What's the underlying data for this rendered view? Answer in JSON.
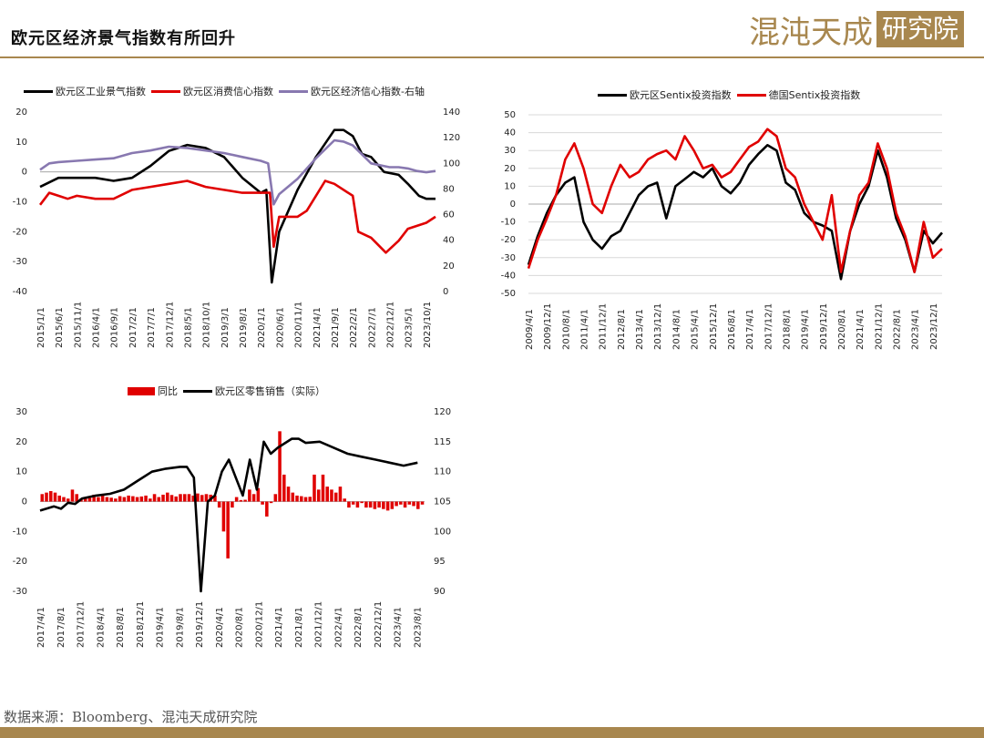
{
  "header": {
    "title": "欧元区经济景气指数有所回升",
    "brand_main": "混沌天成",
    "brand_box": "研究院"
  },
  "colors": {
    "black": "#000000",
    "red": "#e00000",
    "purple": "#8878b0",
    "gold": "#a8874e"
  },
  "source": "数据来源：Bloomberg、混沌天成研究院",
  "chart_data": [
    {
      "type": "line",
      "x_ticks": [
        "2015/1/1",
        "2015/6/1",
        "2015/11/1",
        "2016/4/1",
        "2016/9/1",
        "2017/2/1",
        "2017/7/1",
        "2017/12/1",
        "2018/5/1",
        "2018/10/1",
        "2019/3/1",
        "2019/8/1",
        "2020/1/1",
        "2020/6/1",
        "2020/11/1",
        "2021/4/1",
        "2021/9/1",
        "2022/2/1",
        "2022/7/1",
        "2022/12/1",
        "2023/5/1",
        "2023/10/1"
      ],
      "ylim": [
        -40,
        20
      ],
      "y_ticks": [
        20,
        10,
        0,
        -10,
        -20,
        -30,
        -40
      ],
      "y2lim": [
        0,
        140
      ],
      "y2_ticks": [
        140,
        120,
        100,
        80,
        60,
        40,
        20,
        0
      ],
      "series": [
        {
          "name": "欧元区工业景气指数",
          "axis": "left",
          "color": "#000000",
          "points": [
            [
              0,
              -5
            ],
            [
              1,
              -2
            ],
            [
              2,
              -2
            ],
            [
              3,
              -2
            ],
            [
              4,
              -3
            ],
            [
              5,
              -2
            ],
            [
              6,
              2
            ],
            [
              7,
              7
            ],
            [
              8,
              9
            ],
            [
              9,
              8
            ],
            [
              10,
              5
            ],
            [
              11,
              -2
            ],
            [
              12,
              -7
            ],
            [
              12.3,
              -6
            ],
            [
              12.6,
              -37
            ],
            [
              13,
              -20
            ],
            [
              14,
              -6
            ],
            [
              15,
              5
            ],
            [
              16,
              14
            ],
            [
              16.5,
              14
            ],
            [
              17,
              12
            ],
            [
              17.5,
              6
            ],
            [
              18,
              5
            ],
            [
              18.7,
              0
            ],
            [
              19.5,
              -1
            ],
            [
              20,
              -4
            ],
            [
              20.6,
              -8
            ],
            [
              21,
              -9
            ],
            [
              21.5,
              -9
            ]
          ]
        },
        {
          "name": "欧元区消费信心指数",
          "axis": "left",
          "color": "#e00000",
          "points": [
            [
              0,
              -11
            ],
            [
              0.5,
              -7
            ],
            [
              1,
              -8
            ],
            [
              1.5,
              -9
            ],
            [
              2,
              -8
            ],
            [
              3,
              -9
            ],
            [
              4,
              -9
            ],
            [
              5,
              -6
            ],
            [
              6,
              -5
            ],
            [
              7,
              -4
            ],
            [
              8,
              -3
            ],
            [
              9,
              -5
            ],
            [
              10,
              -6
            ],
            [
              11,
              -7
            ],
            [
              12,
              -7
            ],
            [
              12.5,
              -7
            ],
            [
              12.7,
              -25
            ],
            [
              13,
              -15
            ],
            [
              14,
              -15
            ],
            [
              14.5,
              -13
            ],
            [
              15,
              -8
            ],
            [
              15.5,
              -3
            ],
            [
              16,
              -4
            ],
            [
              17,
              -8
            ],
            [
              17.3,
              -20
            ],
            [
              18,
              -22
            ],
            [
              18.8,
              -27
            ],
            [
              19.5,
              -23
            ],
            [
              20,
              -19
            ],
            [
              21,
              -17
            ],
            [
              21.5,
              -15
            ]
          ]
        },
        {
          "name": "欧元区经济信心指数-右轴",
          "axis": "right",
          "color": "#8878b0",
          "points": [
            [
              0,
              95
            ],
            [
              0.5,
              100
            ],
            [
              1,
              101
            ],
            [
              2,
              102
            ],
            [
              3,
              103
            ],
            [
              4,
              104
            ],
            [
              5,
              108
            ],
            [
              6,
              110
            ],
            [
              7,
              113
            ],
            [
              8,
              112
            ],
            [
              9,
              110
            ],
            [
              10,
              108
            ],
            [
              11,
              105
            ],
            [
              12,
              102
            ],
            [
              12.4,
              100
            ],
            [
              12.7,
              68
            ],
            [
              13,
              76
            ],
            [
              14,
              88
            ],
            [
              15,
              104
            ],
            [
              16,
              118
            ],
            [
              16.5,
              117
            ],
            [
              17,
              114
            ],
            [
              18,
              100
            ],
            [
              19,
              97
            ],
            [
              19.5,
              97
            ],
            [
              20,
              96
            ],
            [
              20.5,
              94
            ],
            [
              21,
              93
            ],
            [
              21.5,
              94
            ]
          ]
        }
      ]
    },
    {
      "type": "line",
      "x_ticks": [
        "2009/4/1",
        "2009/12/1",
        "2010/8/1",
        "2011/4/1",
        "2011/12/1",
        "2012/8/1",
        "2013/4/1",
        "2013/12/1",
        "2014/8/1",
        "2015/4/1",
        "2015/12/1",
        "2016/8/1",
        "2017/4/1",
        "2017/12/1",
        "2018/8/1",
        "2019/4/1",
        "2019/12/1",
        "2020/8/1",
        "2021/4/1",
        "2021/12/1",
        "2022/8/1",
        "2023/4/1",
        "2023/12/1"
      ],
      "ylim": [
        -50,
        50
      ],
      "y_ticks": [
        50,
        40,
        30,
        20,
        10,
        0,
        -10,
        -20,
        -30,
        -40,
        -50
      ],
      "series": [
        {
          "name": "欧元区Sentix投资指数",
          "color": "#000000",
          "points": [
            [
              0,
              -34
            ],
            [
              0.5,
              -18
            ],
            [
              1,
              -5
            ],
            [
              1.5,
              5
            ],
            [
              2,
              12
            ],
            [
              2.5,
              15
            ],
            [
              3,
              -10
            ],
            [
              3.5,
              -20
            ],
            [
              4,
              -25
            ],
            [
              4.5,
              -18
            ],
            [
              5,
              -15
            ],
            [
              5.5,
              -5
            ],
            [
              6,
              5
            ],
            [
              6.5,
              10
            ],
            [
              7,
              12
            ],
            [
              7.5,
              -8
            ],
            [
              8,
              10
            ],
            [
              8.5,
              14
            ],
            [
              9,
              18
            ],
            [
              9.5,
              15
            ],
            [
              10,
              20
            ],
            [
              10.5,
              10
            ],
            [
              11,
              6
            ],
            [
              11.5,
              12
            ],
            [
              12,
              22
            ],
            [
              12.5,
              28
            ],
            [
              13,
              33
            ],
            [
              13.5,
              30
            ],
            [
              14,
              12
            ],
            [
              14.5,
              8
            ],
            [
              15,
              -5
            ],
            [
              15.5,
              -10
            ],
            [
              16,
              -12
            ],
            [
              16.5,
              -15
            ],
            [
              17,
              -42
            ],
            [
              17.5,
              -15
            ],
            [
              18,
              0
            ],
            [
              18.5,
              10
            ],
            [
              19,
              30
            ],
            [
              19.5,
              15
            ],
            [
              20,
              -8
            ],
            [
              20.5,
              -20
            ],
            [
              21,
              -38
            ],
            [
              21.5,
              -15
            ],
            [
              22,
              -22
            ],
            [
              22.5,
              -16
            ]
          ]
        },
        {
          "name": "德国Sentix投资指数",
          "color": "#e00000",
          "points": [
            [
              0,
              -36
            ],
            [
              0.5,
              -20
            ],
            [
              1,
              -8
            ],
            [
              1.5,
              5
            ],
            [
              2,
              25
            ],
            [
              2.5,
              34
            ],
            [
              3,
              20
            ],
            [
              3.5,
              0
            ],
            [
              4,
              -5
            ],
            [
              4.5,
              10
            ],
            [
              5,
              22
            ],
            [
              5.5,
              15
            ],
            [
              6,
              18
            ],
            [
              6.5,
              25
            ],
            [
              7,
              28
            ],
            [
              7.5,
              30
            ],
            [
              8,
              25
            ],
            [
              8.5,
              38
            ],
            [
              9,
              30
            ],
            [
              9.5,
              20
            ],
            [
              10,
              22
            ],
            [
              10.5,
              15
            ],
            [
              11,
              18
            ],
            [
              11.5,
              25
            ],
            [
              12,
              32
            ],
            [
              12.5,
              35
            ],
            [
              13,
              42
            ],
            [
              13.5,
              38
            ],
            [
              14,
              20
            ],
            [
              14.5,
              15
            ],
            [
              15,
              0
            ],
            [
              15.5,
              -10
            ],
            [
              16,
              -20
            ],
            [
              16.5,
              5
            ],
            [
              17,
              -38
            ],
            [
              17.5,
              -15
            ],
            [
              18,
              5
            ],
            [
              18.5,
              12
            ],
            [
              19,
              34
            ],
            [
              19.5,
              20
            ],
            [
              20,
              -5
            ],
            [
              20.5,
              -18
            ],
            [
              21,
              -38
            ],
            [
              21.5,
              -10
            ],
            [
              22,
              -30
            ],
            [
              22.5,
              -25
            ]
          ]
        }
      ]
    },
    {
      "type": "bar+line",
      "x_ticks": [
        "2017/4/1",
        "2017/8/1",
        "2017/12/1",
        "2018/4/1",
        "2018/8/1",
        "2018/12/1",
        "2019/4/1",
        "2019/8/1",
        "2019/12/1",
        "2020/4/1",
        "2020/8/1",
        "2020/12/1",
        "2021/4/1",
        "2021/8/1",
        "2021/12/1",
        "2022/4/1",
        "2022/8/1",
        "2022/12/1",
        "2023/4/1",
        "2023/8/1"
      ],
      "ylim": [
        -30,
        30
      ],
      "y_ticks": [
        30,
        20,
        10,
        0,
        -10,
        -20,
        -30
      ],
      "y2lim": [
        90,
        120
      ],
      "y2_ticks": [
        120,
        115,
        110,
        105,
        100,
        95,
        90
      ],
      "series": [
        {
          "name": "同比",
          "type": "bar",
          "axis": "left",
          "color": "#e00000",
          "values": [
            2.5,
            3,
            3.5,
            3,
            2,
            1.5,
            1,
            4,
            2.5,
            1,
            1.5,
            1.2,
            2.3,
            1.5,
            2,
            1.5,
            1.3,
            1,
            1.8,
            1.5,
            2,
            1.8,
            1.5,
            1.7,
            2,
            1,
            2.5,
            1.5,
            2.3,
            3,
            2.2,
            1.7,
            2.5,
            2.5,
            2.5,
            2,
            2.7,
            2.2,
            2.5,
            2.3,
            2,
            -2,
            -10,
            -19,
            -2,
            1.5,
            0.5,
            0.6,
            4,
            2.5,
            4.5,
            -1,
            -5,
            -0.5,
            2.5,
            23.5,
            9,
            5,
            3,
            2,
            1.8,
            1.5,
            1.6,
            9,
            4,
            9,
            5,
            4,
            3,
            5,
            1,
            -2,
            -1,
            -2,
            -0.5,
            -2,
            -2,
            -2.5,
            -2,
            -2.5,
            -3,
            -2.5,
            -1.5,
            -1,
            -2,
            -1,
            -1.5,
            -2.5,
            -1
          ]
        },
        {
          "name": "欧元区零售销售（实际）",
          "type": "line",
          "axis": "right",
          "color": "#000000",
          "points": [
            [
              0,
              103.5
            ],
            [
              1,
              104.2
            ],
            [
              1.5,
              103.8
            ],
            [
              2,
              104.8
            ],
            [
              2.5,
              104.6
            ],
            [
              3,
              105.5
            ],
            [
              4,
              106
            ],
            [
              5,
              106.3
            ],
            [
              6,
              107
            ],
            [
              7,
              108.5
            ],
            [
              8,
              110
            ],
            [
              9,
              110.5
            ],
            [
              10,
              110.8
            ],
            [
              10.5,
              110.8
            ],
            [
              11,
              109
            ],
            [
              11.5,
              90
            ],
            [
              12,
              105
            ],
            [
              12.5,
              106
            ],
            [
              13,
              110
            ],
            [
              13.5,
              112
            ],
            [
              14,
              109
            ],
            [
              14.5,
              106
            ],
            [
              15,
              112
            ],
            [
              15.5,
              107
            ],
            [
              16,
              115
            ],
            [
              16.5,
              113
            ],
            [
              17,
              114
            ],
            [
              18,
              115.5
            ],
            [
              18.5,
              115.5
            ],
            [
              19,
              114.8
            ],
            [
              20,
              115
            ],
            [
              21,
              114
            ],
            [
              22,
              113
            ],
            [
              23,
              112.5
            ],
            [
              24,
              112
            ],
            [
              25,
              111.5
            ],
            [
              26,
              111
            ],
            [
              27,
              111.5
            ]
          ]
        }
      ]
    }
  ]
}
